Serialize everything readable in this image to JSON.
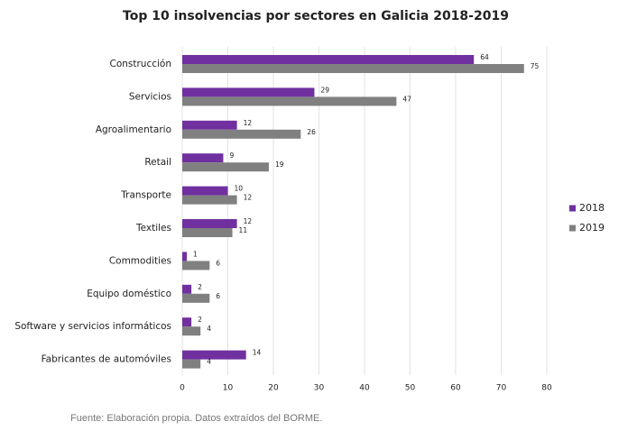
{
  "chart_data": {
    "type": "hbar",
    "title": "Top 10 insolvencias por sectores en Galicia 2018-2019",
    "categories": [
      "Construcción",
      "Servicios",
      "Agroalimentario",
      "Retail",
      "Transporte",
      "Textiles",
      "Commodities",
      "Equipo doméstico",
      "Software y servicios informáticos",
      "Fabricantes de automóviles"
    ],
    "series": [
      {
        "name": "2018",
        "color": "#7030a0",
        "values": [
          64,
          29,
          12,
          9,
          10,
          12,
          1,
          2,
          2,
          14
        ]
      },
      {
        "name": "2019",
        "color": "#808080",
        "values": [
          75,
          47,
          26,
          19,
          12,
          11,
          6,
          6,
          4,
          4
        ]
      }
    ],
    "xlim": [
      0,
      80
    ],
    "xticks": [
      0,
      10,
      20,
      30,
      40,
      50,
      60,
      70,
      80
    ],
    "grid": true,
    "legend": "right",
    "source": "Fuente: Elaboración propia. Datos extraídos del BORME."
  }
}
